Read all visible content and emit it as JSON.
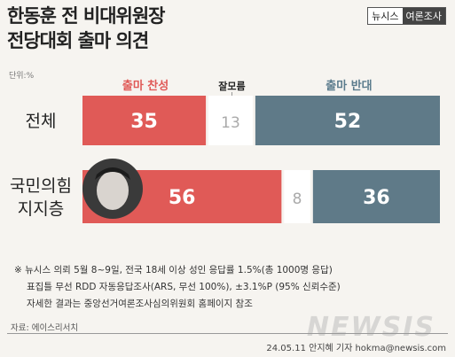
{
  "header": {
    "title_line1": "한동훈 전 비대위원장",
    "title_line2": "전당대회 출마 의견",
    "brand_left": "뉴시스",
    "brand_right": "여론조사"
  },
  "unit_label": "단위:%",
  "colors": {
    "support": "#e05a57",
    "neutral": "#ffffff",
    "oppose": "#5f7a88",
    "support_label": "#e05a57",
    "oppose_label": "#5b7c8d"
  },
  "chart_data": {
    "type": "bar",
    "stacked": true,
    "orientation": "horizontal",
    "categories": [
      "전체",
      "국민의힘 지지층"
    ],
    "category_lines": [
      [
        "전체"
      ],
      [
        "국민의힘",
        "지지층"
      ]
    ],
    "series": [
      {
        "name": "출마 찬성",
        "values": [
          35,
          56
        ]
      },
      {
        "name": "잘모름",
        "values": [
          13,
          8
        ]
      },
      {
        "name": "출마 반대",
        "values": [
          52,
          36
        ]
      }
    ]
  },
  "footnotes": [
    "※ 뉴시스 의뢰 5월 8~9일, 전국 18세 이상 성인 응답률 1.5%(총 1000명 응답)",
    "표집틀 무선 RDD 자동응답조사(ARS, 무선 100%), ±3.1%P (95% 신뢰수준)",
    "자세한 결과는 중앙선거여론조사심의위원회 홈페이지 참조"
  ],
  "source": "자료: 에이스리서치",
  "credit": "24.05.11 안지혜 기자 hokma@newsis.com",
  "watermark": "NEWSIS"
}
